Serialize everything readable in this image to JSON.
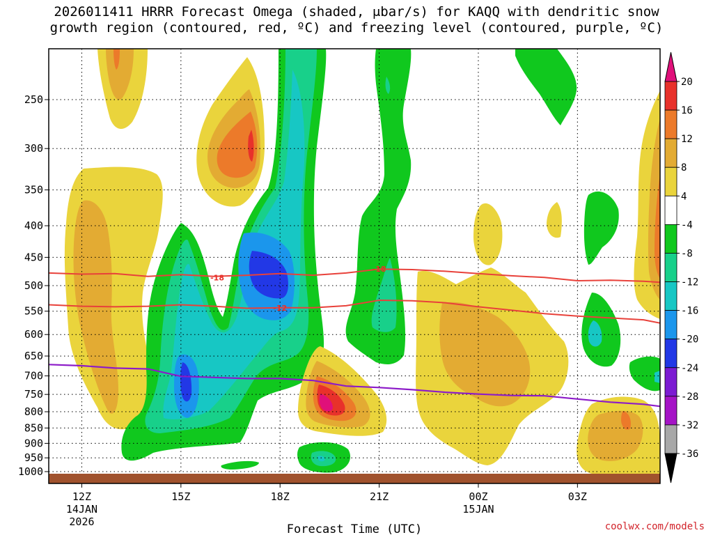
{
  "chart_data": {
    "type": "heatmap",
    "title_line1": "2026011411 HRRR Forecast Omega (shaded, μbar/s) for KAQQ with dendritic snow",
    "title_line2": "growth region (contoured, red, ºC) and freezing level (contoured, purple, ºC)",
    "xlabel": "Forecast Time (UTC)",
    "ylabel": "",
    "credit": "coolwx.com/models",
    "y_axis": {
      "scale": "log",
      "ticks": [
        250,
        300,
        350,
        400,
        450,
        500,
        550,
        600,
        650,
        700,
        750,
        800,
        850,
        900,
        950,
        1000
      ],
      "tick_labels": [
        "250",
        "300",
        "350",
        "400",
        "450",
        "500",
        "550",
        "600",
        "650",
        "700",
        "750",
        "800",
        "850",
        "900",
        "950",
        "1000"
      ],
      "range": [
        200,
        1010
      ]
    },
    "x_axis": {
      "range_hours": [
        11,
        29.5
      ],
      "ticks": [
        {
          "hour": 12,
          "label": "12Z",
          "sub1": "14JAN",
          "sub2": "2026"
        },
        {
          "hour": 15,
          "label": "15Z",
          "sub1": "",
          "sub2": ""
        },
        {
          "hour": 18,
          "label": "18Z",
          "sub1": "",
          "sub2": ""
        },
        {
          "hour": 21,
          "label": "21Z",
          "sub1": "",
          "sub2": ""
        },
        {
          "hour": 24,
          "label": "00Z",
          "sub1": "15JAN",
          "sub2": ""
        },
        {
          "hour": 27,
          "label": "03Z",
          "sub1": "",
          "sub2": ""
        }
      ]
    },
    "colorbar": {
      "levels": [
        {
          "label": "20",
          "color": "#e0107a"
        },
        {
          "label": "16",
          "color": "#e8312b"
        },
        {
          "label": "12",
          "color": "#ec7a2a"
        },
        {
          "label": "8",
          "color": "#e3ab33"
        },
        {
          "label": "4",
          "color": "#ead43c"
        },
        {
          "label": "-4",
          "color": "#ffffff"
        },
        {
          "label": "-8",
          "color": "#10c81e"
        },
        {
          "label": "-12",
          "color": "#18d08a"
        },
        {
          "label": "-16",
          "color": "#17c7c4"
        },
        {
          "label": "-20",
          "color": "#1b96ec"
        },
        {
          "label": "-24",
          "color": "#2238e6"
        },
        {
          "label": "-28",
          "color": "#7c1bd2"
        },
        {
          "label": "-32",
          "color": "#a514c6"
        },
        {
          "label": "-36",
          "color": "#a8a8a8"
        }
      ],
      "top_arrow_color": "#e0107a",
      "bottom_arrow_color": "#000000"
    },
    "contours": {
      "dendritic": [
        {
          "label": "-18",
          "color": "#e8413a",
          "label_at": [
            {
              "hour": 16.1,
              "p": 485
            },
            {
              "hour": 21.0,
              "p": 470
            }
          ],
          "points": [
            [
              11,
              477
            ],
            [
              12,
              479
            ],
            [
              13,
              478
            ],
            [
              14,
              483
            ],
            [
              15,
              480
            ],
            [
              16,
              483
            ],
            [
              17,
              481
            ],
            [
              18,
              478
            ],
            [
              19,
              481
            ],
            [
              20,
              477
            ],
            [
              21,
              470
            ],
            [
              22,
              471
            ],
            [
              23,
              474
            ],
            [
              24,
              478
            ],
            [
              25,
              482
            ],
            [
              26,
              485
            ],
            [
              27,
              491
            ],
            [
              28,
              490
            ],
            [
              29,
              492
            ],
            [
              29.5,
              494
            ]
          ]
        },
        {
          "label": "-12",
          "color": "#e8413a",
          "label_at": [
            {
              "hour": 18.0,
              "p": 543
            }
          ],
          "points": [
            [
              11,
              537
            ],
            [
              12,
              540
            ],
            [
              13,
              541
            ],
            [
              14,
              540
            ],
            [
              15,
              537
            ],
            [
              16,
              540
            ],
            [
              17,
              544
            ],
            [
              18,
              543
            ],
            [
              19,
              543
            ],
            [
              20,
              539
            ],
            [
              21,
              528
            ],
            [
              22,
              529
            ],
            [
              23,
              533
            ],
            [
              24,
              541
            ],
            [
              25,
              548
            ],
            [
              26,
              555
            ],
            [
              27,
              560
            ],
            [
              28,
              564
            ],
            [
              29,
              568
            ],
            [
              29.5,
              575
            ]
          ]
        }
      ],
      "freezing_level": {
        "color": "#8c1bc8",
        "points": [
          [
            11,
            671
          ],
          [
            12,
            674
          ],
          [
            13,
            680
          ],
          [
            14,
            682
          ],
          [
            15,
            701
          ],
          [
            16,
            704
          ],
          [
            17,
            707
          ],
          [
            18,
            707
          ],
          [
            19,
            712
          ],
          [
            20,
            727
          ],
          [
            21,
            731
          ],
          [
            22,
            737
          ],
          [
            23,
            744
          ],
          [
            24,
            749
          ],
          [
            25,
            753
          ],
          [
            26,
            754
          ],
          [
            27,
            763
          ],
          [
            28,
            772
          ],
          [
            29,
            778
          ],
          [
            29.5,
            784
          ]
        ]
      }
    },
    "omega_features": [
      {
        "name": "upper-left-positive-lobe",
        "levels": [
          4,
          8,
          12
        ],
        "center_hour": 13.0,
        "center_p": 205
      },
      {
        "name": "left-positive-region",
        "levels": [
          4,
          8
        ],
        "center_hour": 12.5,
        "center_p": 600
      },
      {
        "name": "upper-mid-positive-lobe",
        "levels": [
          4,
          8,
          12,
          16
        ],
        "center_hour": 16.8,
        "center_p": 300
      },
      {
        "name": "central-negative-column",
        "levels": [
          -4,
          -8,
          -12,
          -16,
          -20,
          -24
        ],
        "center_hour": 17.8,
        "center_p": 470
      },
      {
        "name": "lower-left-negative-region",
        "levels": [
          -4,
          -8,
          -12,
          -16,
          -20,
          -24
        ],
        "center_hour": 15.1,
        "center_p": 720
      },
      {
        "name": "low-level-positive-max",
        "levels": [
          4,
          8,
          12,
          16,
          20
        ],
        "center_hour": 19.3,
        "center_p": 780
      },
      {
        "name": "near-surface-negative-cell",
        "levels": [
          -4,
          -8,
          -12
        ],
        "center_hour": 19.2,
        "center_p": 960
      },
      {
        "name": "upper-right-negative-column",
        "levels": [
          -4,
          -8,
          -12
        ],
        "center_hour": 21.0,
        "center_p": 300
      },
      {
        "name": "right-positive-region",
        "levels": [
          4,
          8
        ],
        "center_hour": 24.0,
        "center_p": 700
      },
      {
        "name": "far-right-positive-region",
        "levels": [
          4,
          8,
          12
        ],
        "center_hour": 29.3,
        "center_p": 450
      },
      {
        "name": "lower-right-positive-cell",
        "levels": [
          4,
          8,
          12
        ],
        "center_hour": 28.0,
        "center_p": 870
      }
    ]
  }
}
